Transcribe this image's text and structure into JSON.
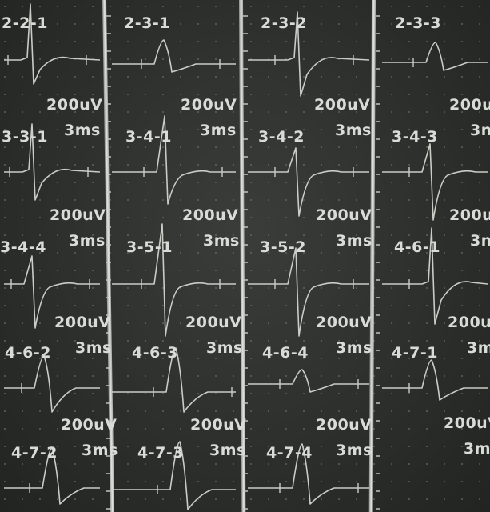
{
  "labels": [
    "2-2-1",
    "2-3-1",
    "2-3-2",
    "2-3-3",
    "3-3-1",
    "3-4-1",
    "3-4-2",
    "3-4-3",
    "3-4-4",
    "3-5-1",
    "3-5-2",
    "4-6-1",
    "4-6-2",
    "4-6-3",
    "4-6-4",
    "4-7-1",
    "4-7-2",
    "4-7-3",
    "4-7-4"
  ],
  "scale": {
    "amplitude": "200uV",
    "time": "3ms"
  }
}
